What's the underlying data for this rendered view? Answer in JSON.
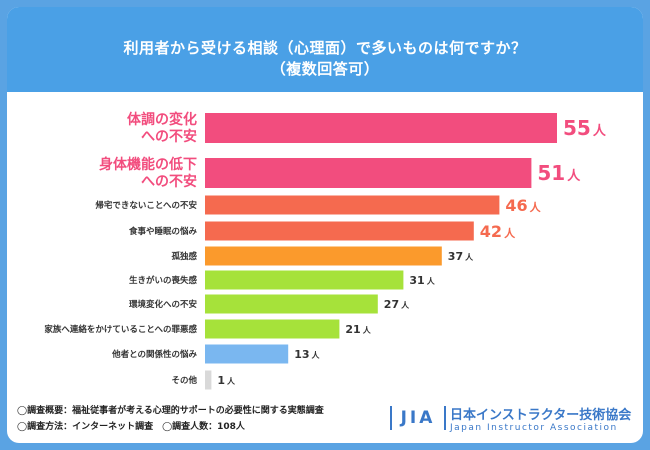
{
  "header": {
    "title_line1": "利用者から受ける相談（心理面）で多いものは何ですか？",
    "title_line2": "（複数回答可）"
  },
  "chart_data": {
    "type": "bar",
    "orientation": "horizontal",
    "unit": "人",
    "xlim": [
      0,
      55
    ],
    "categories": [
      "体調の変化\nへの不安",
      "身体機能の低下\nへの不安",
      "帰宅できないことへの不安",
      "食事や睡眠の悩み",
      "孤独感",
      "生きがいの喪失感",
      "環境変化への不安",
      "家族へ連絡をかけていることへの罪悪感",
      "他者との関係性の悩み",
      "その他"
    ],
    "values": [
      55,
      51,
      46,
      42,
      37,
      31,
      27,
      21,
      13,
      1
    ],
    "bar_colors": [
      "#f24d7e",
      "#f24d7e",
      "#f56a4f",
      "#f56a4f",
      "#fb9a2c",
      "#a6e23a",
      "#a6e23a",
      "#a6e23a",
      "#7ab7f0",
      "#d9d9d9"
    ],
    "label_colors": [
      "#f24d7e",
      "#f24d7e",
      "#f56a4f",
      "#f56a4f",
      "#333333",
      "#333333",
      "#333333",
      "#333333",
      "#333333",
      "#333333"
    ]
  },
  "footer": {
    "note1": "◯調査概要：福祉従事者が考える心理的サポートの必要性に関する実態調査",
    "note2": "◯調査方法：インターネット調査　◯調査人数：108人"
  },
  "logo": {
    "mark": "JIA",
    "name": "日本インストラクター技術協会",
    "english": "Japan Instructor Association"
  }
}
